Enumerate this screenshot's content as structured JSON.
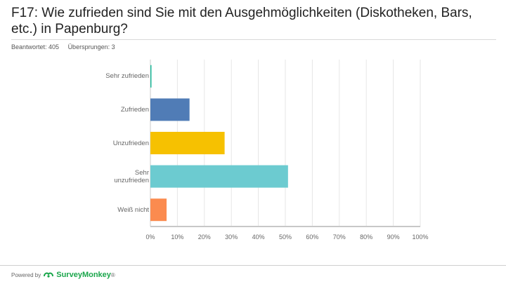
{
  "header": {
    "title": "F17: Wie zufrieden sind Sie mit den Ausgehmöglichkeiten (Diskotheken, Bars, etc.) in Papenburg?",
    "answered": "Beantwortet: 405",
    "skipped": "Übersprungen: 3"
  },
  "footer": {
    "powered_by": "Powered by",
    "brand": "SurveyMonkey",
    "brand_mark": "®"
  },
  "colors": {
    "teal": "#1bb99a",
    "blue": "#507cb6",
    "yellow": "#f6c101",
    "cyan": "#6ccbd0",
    "orange": "#fb8b4f",
    "grid": "#e6e6e6",
    "axis": "#c8c8c8",
    "logo": "#1aa64b"
  },
  "chart_data": {
    "type": "bar",
    "orientation": "horizontal",
    "categories": [
      "Sehr zufrieden",
      "Zufrieden",
      "Unzufrieden",
      "Sehr unzufrieden",
      "Weiß nicht"
    ],
    "category_labels": [
      "Sehr zufrieden",
      "Zufrieden",
      "Unzufrieden",
      "Sehr\nunzufrieden",
      "Weiß nicht"
    ],
    "values": [
      0.25,
      14.5,
      27.5,
      51,
      6
    ],
    "bar_colors": [
      "#1bb99a",
      "#507cb6",
      "#f6c101",
      "#6ccbd0",
      "#fb8b4f"
    ],
    "xlim": [
      0,
      100
    ],
    "xticks": [
      0,
      10,
      20,
      30,
      40,
      50,
      60,
      70,
      80,
      90,
      100
    ],
    "xtick_labels": [
      "0%",
      "10%",
      "20%",
      "30%",
      "40%",
      "50%",
      "60%",
      "70%",
      "80%",
      "90%",
      "100%"
    ],
    "grid": true,
    "xlabel": "",
    "ylabel": ""
  }
}
